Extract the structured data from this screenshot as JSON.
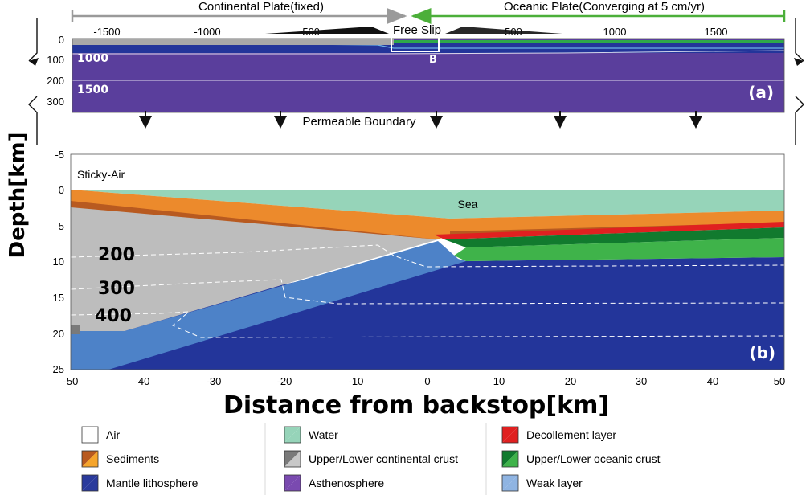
{
  "top_labels": {
    "continental": "Continental Plate(fixed)",
    "oceanic": "Oceanic Plate(Converging at 5 cm/yr)",
    "free_slip": "Free Slip",
    "box_label": "B",
    "permeable": "Permeable Boundary"
  },
  "panel_a": {
    "tag": "(a)",
    "x_ticks": [
      "-1500",
      "-1000",
      "-500",
      "500",
      "1000",
      "1500"
    ],
    "y_ticks": [
      "0",
      "100",
      "200",
      "300"
    ],
    "isotherms": [
      "1000",
      "1500"
    ]
  },
  "panel_b": {
    "tag": "(b)",
    "sticky_air": "Sticky-Air",
    "sea": "Sea",
    "y_ticks": [
      "-5",
      "0",
      "5",
      "10",
      "15",
      "20",
      "25"
    ],
    "x_ticks": [
      "-50",
      "-40",
      "-30",
      "-20",
      "-10",
      "0",
      "10",
      "20",
      "30",
      "40",
      "50"
    ],
    "isotherms": [
      "200",
      "300",
      "400"
    ]
  },
  "axis": {
    "ylabel": "Depth[km]",
    "xlabel": "Distance from backstop[km]"
  },
  "colors": {
    "gray_arrow": "#9a9a9a",
    "green_arrow": "#4caf3a",
    "asthenosphere": "#5a3e9c",
    "mantle": "#23359a",
    "weak": "#4d82c8",
    "continental": "#bdbdbd",
    "sediment": "#ec8a2c",
    "sediment_dark": "#b85a20",
    "water": "#96d4b9",
    "decollement": "#e02020",
    "oceanic_dark": "#117a2e",
    "oceanic_light": "#3fb34a"
  },
  "legend": [
    {
      "label": "Air",
      "swatch": [
        "#ffffff",
        "#ffffff"
      ]
    },
    {
      "label": "Water",
      "swatch": [
        "#96d4b9",
        "#96d4b9"
      ]
    },
    {
      "label": "Decollement layer",
      "swatch": [
        "#e02020",
        "#e02020"
      ]
    },
    {
      "label": "Sediments",
      "swatch": [
        "#b85a20",
        "#f5a52c"
      ]
    },
    {
      "label": "Upper/Lower continental crust",
      "swatch": [
        "#7a7a7a",
        "#c8c8c8"
      ]
    },
    {
      "label": "Upper/Lower oceanic crust",
      "swatch": [
        "#117a2e",
        "#3fb34a"
      ]
    },
    {
      "label": "Mantle lithosphere",
      "swatch": [
        "#2a3a9c",
        "#2a3a9c"
      ]
    },
    {
      "label": "Asthenosphere",
      "swatch": [
        "#7a4ab0",
        "#7a4ab0"
      ]
    },
    {
      "label": "Weak layer",
      "swatch": [
        "#8fb4e2",
        "#8fb4e2"
      ]
    }
  ]
}
